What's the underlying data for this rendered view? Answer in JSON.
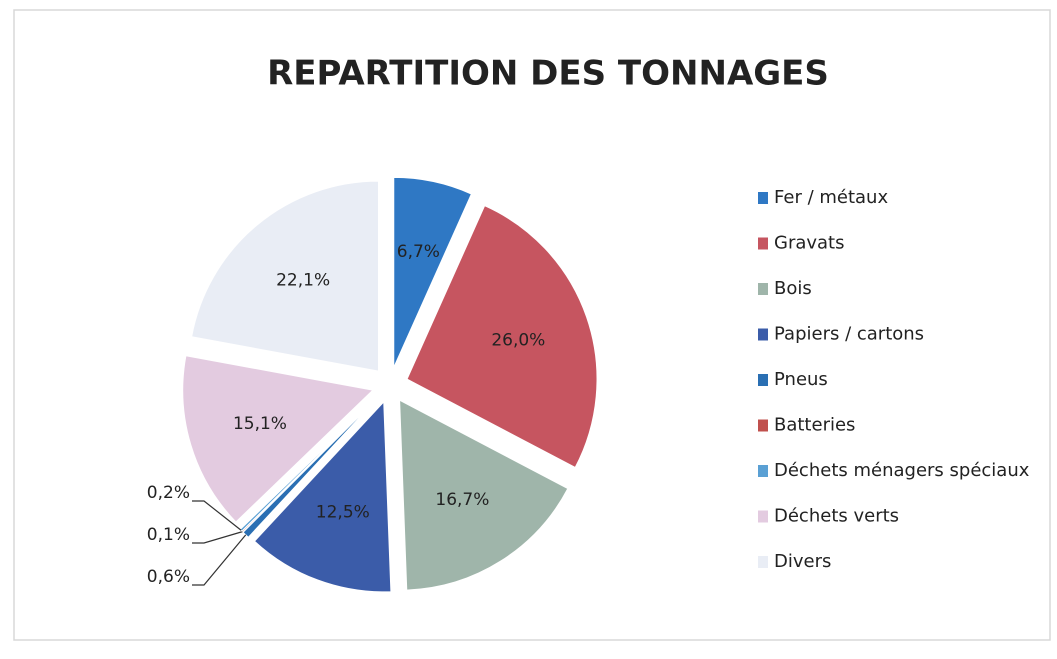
{
  "chart_data": {
    "type": "pie",
    "title": "REPARTITION DES TONNAGES",
    "categories": [
      "Fer / métaux",
      "Gravats",
      "Bois",
      "Papiers / cartons",
      "Pneus",
      "Batteries",
      "Déchets ménagers spéciaux",
      "Déchets verts",
      "Divers"
    ],
    "values": [
      6.7,
      26.0,
      16.7,
      12.5,
      0.6,
      0.1,
      0.2,
      15.1,
      22.1
    ],
    "value_labels": [
      "6,7%",
      "26,0%",
      "16,7%",
      "12,5%",
      "0,6%",
      "0,1%",
      "0,2%",
      "15,1%",
      "22,1%"
    ],
    "colors": [
      "#2f78c4",
      "#c65560",
      "#9fb5aa",
      "#3b5ca9",
      "#2a6fb3",
      "#c0504d",
      "#5aa0d4",
      "#e3cbe0",
      "#e9edf5"
    ],
    "legend": "right"
  }
}
